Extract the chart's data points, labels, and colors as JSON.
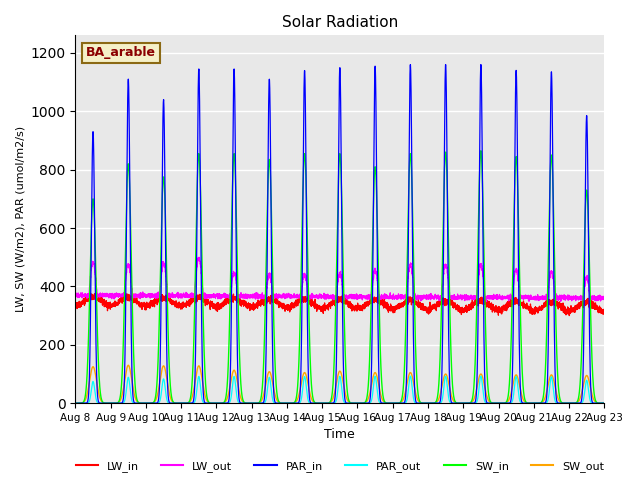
{
  "title": "Solar Radiation",
  "xlabel": "Time",
  "ylabel": "LW, SW (W/m2), PAR (umol/m2/s)",
  "site_label": "BA_arable",
  "ylim": [
    0,
    1260
  ],
  "yticks": [
    0,
    200,
    400,
    600,
    800,
    1000,
    1200
  ],
  "start_day": 8,
  "end_day": 23,
  "n_days": 15,
  "colors": {
    "LW_in": "#ff0000",
    "LW_out": "#ff00ff",
    "PAR_in": "#0000ff",
    "PAR_out": "#00ffff",
    "SW_in": "#00ff00",
    "SW_out": "#ffa500"
  },
  "background_color": "#e8e8e8",
  "fig_background": "#ffffff",
  "par_in_peaks": [
    930,
    1110,
    1040,
    1145,
    1145,
    1110,
    1140,
    1150,
    1155,
    1160,
    1160,
    1160,
    1140,
    1135,
    985
  ],
  "sw_in_peaks": [
    700,
    820,
    775,
    855,
    855,
    835,
    855,
    855,
    810,
    855,
    860,
    865,
    845,
    850,
    730
  ],
  "sw_out_peaks": [
    125,
    130,
    128,
    128,
    113,
    108,
    105,
    110,
    105,
    105,
    100,
    100,
    97,
    97,
    95
  ],
  "lw_in_base": 350,
  "lw_out_base_day": 480,
  "lw_out_base_night": 370
}
